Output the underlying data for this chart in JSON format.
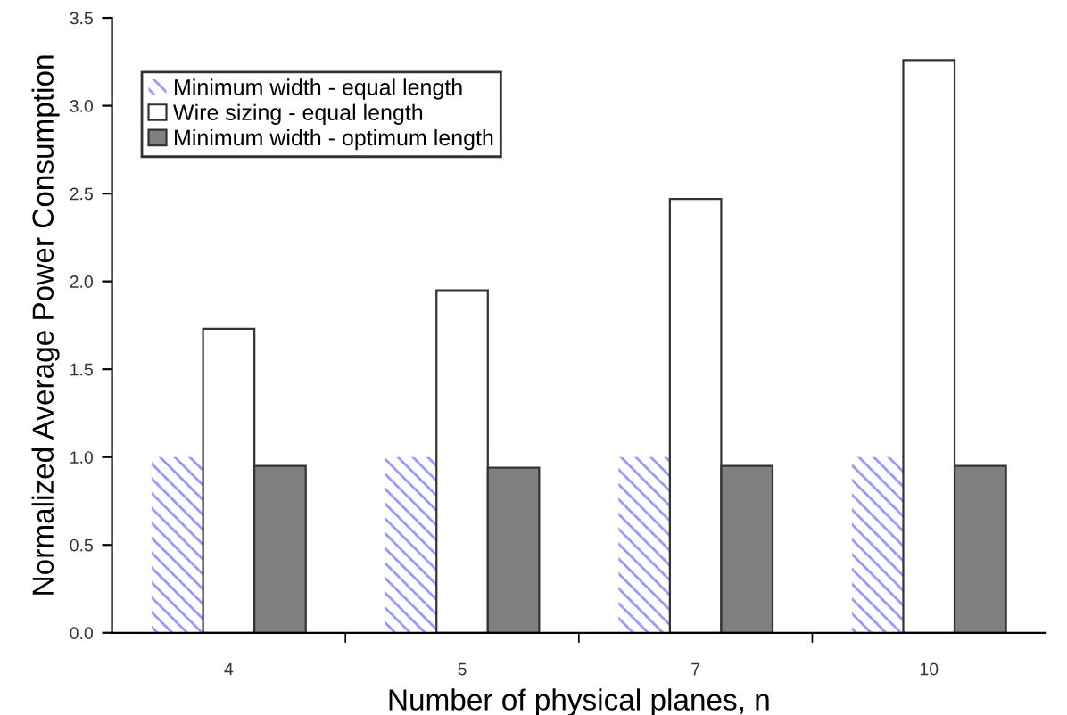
{
  "chart_data": {
    "type": "bar",
    "xlabel": "Number of physical planes, n",
    "ylabel": "Normalized Average Power Consumption",
    "categories": [
      "4",
      "5",
      "7",
      "10"
    ],
    "series": [
      {
        "name": "Minimum width - equal length",
        "color": "#9999ff",
        "values": [
          1.0,
          1.0,
          1.0,
          1.0
        ]
      },
      {
        "name": "Wire sizing - equal length",
        "color": "#ffffff",
        "values": [
          1.73,
          1.95,
          2.47,
          3.26
        ]
      },
      {
        "name": "Minimum width - optimum length",
        "color": "#808080",
        "values": [
          0.95,
          0.94,
          0.95,
          0.95
        ]
      }
    ],
    "ylim": [
      0,
      3.5
    ],
    "yticks": [
      {
        "value": 0,
        "label": "0.0"
      },
      {
        "value": 0.5,
        "label": "0.5"
      },
      {
        "value": 1,
        "label": "1.0"
      },
      {
        "value": 1.5,
        "label": "1.5"
      },
      {
        "value": 2,
        "label": "2.0"
      },
      {
        "value": 2.5,
        "label": "2.5"
      },
      {
        "value": 3,
        "label": "3.0"
      },
      {
        "value": 3.5,
        "label": "3.5"
      }
    ],
    "grid": false,
    "legend": "top left"
  }
}
